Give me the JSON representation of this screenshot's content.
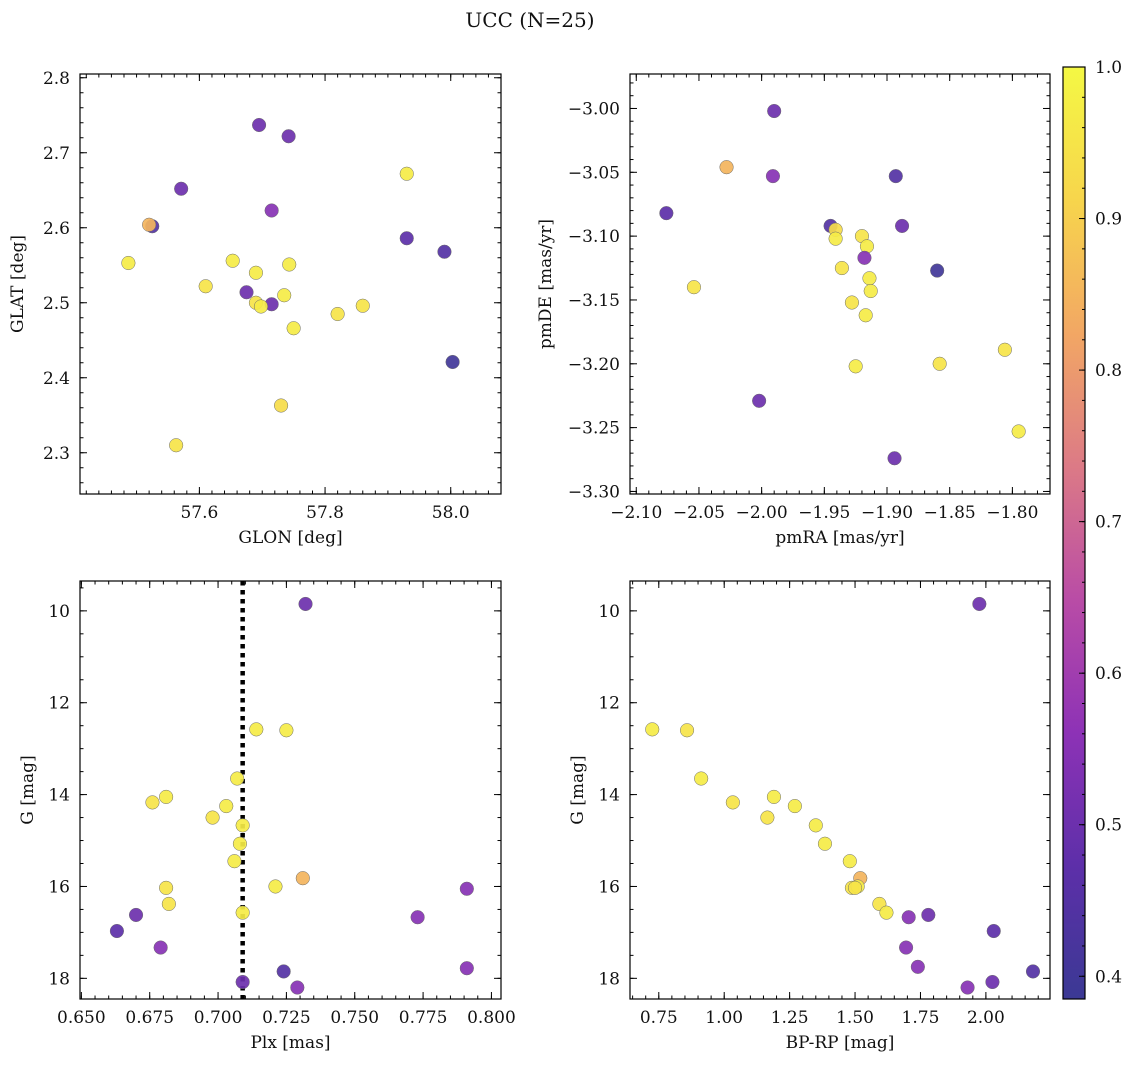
{
  "title": "UCC (N=25)",
  "chart_data": [
    {
      "type": "scatter",
      "name": "sky-position",
      "xlabel": "GLON [deg]",
      "ylabel": "GLAT [deg]",
      "xlim": [
        57.41,
        58.08
      ],
      "ylim": [
        2.245,
        2.805
      ],
      "xticks": [
        57.6,
        57.8,
        58.0
      ],
      "xtick_labels": [
        "57.6",
        "57.8",
        "58.0"
      ],
      "yticks": [
        2.3,
        2.4,
        2.5,
        2.6,
        2.7,
        2.8
      ],
      "ytick_labels": [
        "2.3",
        "2.4",
        "2.5",
        "2.6",
        "2.7",
        "2.8"
      ],
      "x_minor": 0.02,
      "y_minor": 0.02,
      "y_inverted": false,
      "x": [
        57.695,
        57.742,
        57.571,
        57.715,
        57.525,
        57.52,
        57.93,
        57.93,
        57.99,
        57.487,
        57.653,
        57.743,
        57.69,
        57.61,
        57.675,
        57.735,
        57.69,
        57.715,
        57.698,
        57.86,
        57.75,
        57.82,
        58.003,
        57.73,
        57.563
      ],
      "y": [
        2.737,
        2.722,
        2.652,
        2.623,
        2.602,
        2.604,
        2.672,
        2.586,
        2.568,
        2.553,
        2.556,
        2.551,
        2.54,
        2.522,
        2.514,
        2.51,
        2.5,
        2.498,
        2.495,
        2.496,
        2.466,
        2.485,
        2.421,
        2.363,
        2.31
      ],
      "c": [
        0.5,
        0.5,
        0.5,
        0.55,
        0.45,
        0.85,
        0.97,
        0.47,
        0.45,
        0.97,
        0.97,
        0.97,
        0.97,
        0.95,
        0.5,
        0.97,
        0.95,
        0.5,
        0.97,
        0.95,
        0.97,
        0.95,
        0.4,
        0.93,
        0.95
      ]
    },
    {
      "type": "scatter",
      "name": "proper-motion",
      "xlabel": "pmRA [mas/yr]",
      "ylabel": "pmDE [mas/yr]",
      "xlim": [
        -2.105,
        -1.77
      ],
      "ylim": [
        -3.302,
        -2.973
      ],
      "xticks": [
        -2.1,
        -2.05,
        -2.0,
        -1.95,
        -1.9,
        -1.85,
        -1.8
      ],
      "xtick_labels": [
        "−2.10",
        "−2.05",
        "−2.00",
        "−1.95",
        "−1.90",
        "−1.85",
        "−1.80"
      ],
      "yticks": [
        -3.3,
        -3.25,
        -3.2,
        -3.15,
        -3.1,
        -3.05,
        -3.0
      ],
      "ytick_labels": [
        "−3.30",
        "−3.25",
        "−3.20",
        "−3.15",
        "−3.10",
        "−3.05",
        "−3.00"
      ],
      "x_minor": 0.01,
      "y_minor": 0.01,
      "y_inverted": false,
      "x": [
        -1.99,
        -2.028,
        -1.991,
        -1.893,
        -2.076,
        -1.945,
        -1.941,
        -1.888,
        -1.941,
        -1.92,
        -1.916,
        -1.918,
        -1.914,
        -1.936,
        -1.913,
        -1.928,
        -1.917,
        -2.054,
        -1.86,
        -1.858,
        -1.925,
        -1.806,
        -2.002,
        -1.795,
        -1.894
      ],
      "y": [
        -3.002,
        -3.046,
        -3.053,
        -3.053,
        -3.082,
        -3.092,
        -3.095,
        -3.092,
        -3.102,
        -3.1,
        -3.108,
        -3.117,
        -3.133,
        -3.125,
        -3.143,
        -3.152,
        -3.162,
        -3.14,
        -3.127,
        -3.2,
        -3.202,
        -3.189,
        -3.229,
        -3.253,
        -3.274
      ],
      "c": [
        0.5,
        0.85,
        0.55,
        0.45,
        0.47,
        0.45,
        0.93,
        0.5,
        0.97,
        0.95,
        0.97,
        0.55,
        0.97,
        0.95,
        0.97,
        0.95,
        0.97,
        0.95,
        0.4,
        0.95,
        0.97,
        0.95,
        0.5,
        0.97,
        0.5
      ]
    },
    {
      "type": "scatter",
      "name": "parallax-magnitude",
      "xlabel": "Plx [mas]",
      "ylabel": "G [mag]",
      "xlim": [
        0.6495,
        0.8035
      ],
      "ylim": [
        18.45,
        9.35
      ],
      "xticks": [
        0.65,
        0.675,
        0.7,
        0.725,
        0.75,
        0.775,
        0.8
      ],
      "xtick_labels": [
        "0.650",
        "0.675",
        "0.700",
        "0.725",
        "0.750",
        "0.775",
        "0.800"
      ],
      "yticks": [
        10,
        12,
        14,
        16,
        18
      ],
      "ytick_labels": [
        "10",
        "12",
        "14",
        "16",
        "18"
      ],
      "x_minor": 0.005,
      "y_minor": 0.5,
      "y_inverted": true,
      "vline": 0.709,
      "x": [
        0.732,
        0.714,
        0.725,
        0.707,
        0.676,
        0.681,
        0.703,
        0.698,
        0.709,
        0.708,
        0.706,
        0.721,
        0.731,
        0.681,
        0.682,
        0.709,
        0.67,
        0.663,
        0.679,
        0.724,
        0.709,
        0.729,
        0.773,
        0.791,
        0.791
      ],
      "y": [
        9.85,
        12.58,
        12.6,
        13.65,
        14.17,
        14.05,
        14.25,
        14.5,
        14.67,
        15.07,
        15.45,
        16.0,
        15.82,
        16.03,
        16.38,
        16.57,
        16.62,
        16.97,
        17.33,
        17.85,
        18.08,
        18.2,
        16.67,
        16.05,
        17.78
      ],
      "c": [
        0.5,
        0.97,
        0.97,
        0.97,
        0.95,
        0.97,
        0.97,
        0.95,
        0.97,
        0.97,
        0.97,
        0.97,
        0.85,
        0.95,
        0.95,
        0.97,
        0.5,
        0.47,
        0.55,
        0.45,
        0.5,
        0.55,
        0.55,
        0.55,
        0.55
      ]
    },
    {
      "type": "scatter",
      "name": "color-magnitude",
      "xlabel": "BP-RP [mag]",
      "ylabel": "G [mag]",
      "xlim": [
        0.64,
        2.245
      ],
      "ylim": [
        18.45,
        9.35
      ],
      "xticks": [
        0.75,
        1.0,
        1.25,
        1.5,
        1.75,
        2.0
      ],
      "xtick_labels": [
        "0.75",
        "1.00",
        "1.25",
        "1.50",
        "1.75",
        "2.00"
      ],
      "yticks": [
        10,
        12,
        14,
        16,
        18
      ],
      "ytick_labels": [
        "10",
        "12",
        "14",
        "16",
        "18"
      ],
      "x_minor": 0.05,
      "y_minor": 0.5,
      "y_inverted": true,
      "x": [
        1.975,
        0.725,
        0.858,
        0.912,
        1.033,
        1.19,
        1.27,
        1.165,
        1.35,
        1.385,
        1.48,
        1.52,
        1.488,
        1.51,
        1.593,
        1.62,
        1.705,
        1.78,
        2.03,
        1.695,
        1.74,
        1.93,
        2.025,
        2.18,
        1.5
      ],
      "y": [
        9.85,
        12.58,
        12.6,
        13.65,
        14.17,
        14.05,
        14.25,
        14.5,
        14.67,
        15.07,
        15.45,
        15.82,
        16.03,
        16.0,
        16.38,
        16.57,
        16.67,
        16.62,
        16.97,
        17.33,
        17.75,
        18.2,
        18.08,
        17.85,
        16.03
      ],
      "c": [
        0.5,
        0.97,
        0.95,
        0.97,
        0.95,
        0.97,
        0.97,
        0.95,
        0.97,
        0.97,
        0.97,
        0.85,
        0.95,
        0.97,
        0.95,
        0.97,
        0.55,
        0.5,
        0.47,
        0.55,
        0.55,
        0.55,
        0.5,
        0.45,
        0.95
      ]
    }
  ],
  "colorbar": {
    "cmin": 0.385,
    "cmax": 1.0,
    "ticks": [
      0.4,
      0.5,
      0.6,
      0.7,
      0.8,
      0.9,
      1.0
    ],
    "tick_labels": [
      "0.4",
      "0.5",
      "0.6",
      "0.7",
      "0.8",
      "0.9",
      "1.0"
    ],
    "minor": 0.02,
    "colormap": "plasma",
    "stops": [
      "#3b3994",
      "#5d2fa9",
      "#8d32b6",
      "#b94ca6",
      "#dc7a86",
      "#f2a764",
      "#f7d54c",
      "#f4f844"
    ]
  },
  "colors": {
    "marker_edge": "#6b6b6b",
    "axis": "#000000"
  }
}
